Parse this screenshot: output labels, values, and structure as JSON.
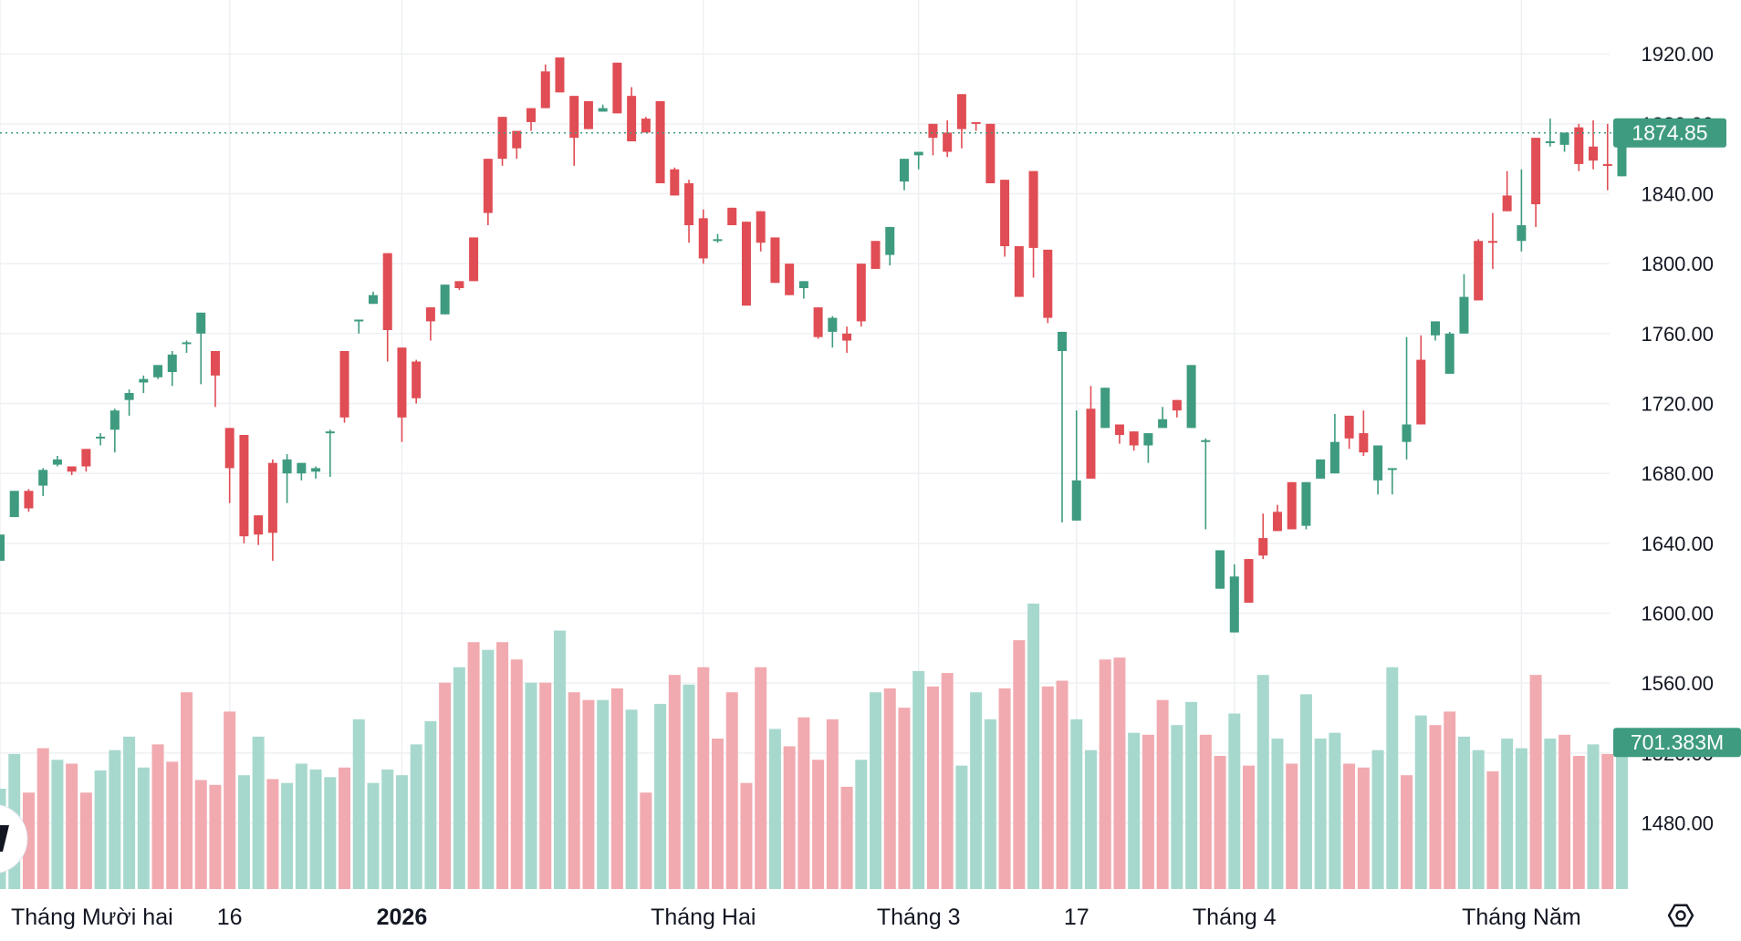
{
  "colors": {
    "up": "#3e9b80",
    "down": "#e04d54",
    "vol_up": "#a7d8ce",
    "vol_down": "#f1aab0",
    "grid": "#eef0f3",
    "tag": "#3e9b80",
    "price_line": "#3e9b80"
  },
  "icons": {
    "settings": "settings-hexagon-icon",
    "logo": "tradingview-logo-icon"
  },
  "chart_data": {
    "type": "candlestick",
    "y_axis": {
      "range": [
        1462,
        1930
      ],
      "ticks": [
        "1920.00",
        "1880.00",
        "1840.00",
        "1800.00",
        "1760.00",
        "1720.00",
        "1680.00",
        "1640.00",
        "1600.00",
        "1560.00",
        "1520.00",
        "1480.00"
      ],
      "tick_values": [
        1920,
        1880,
        1840,
        1800,
        1760,
        1720,
        1680,
        1640,
        1600,
        1560,
        1520,
        1480
      ]
    },
    "x_axis": {
      "labels": [
        {
          "text": "Tháng Mười hai",
          "bar": 0,
          "bold": false
        },
        {
          "text": "16",
          "bar": 16,
          "bold": false
        },
        {
          "text": "2026",
          "bar": 28,
          "bold": true
        },
        {
          "text": "Tháng Hai",
          "bar": 49,
          "bold": false
        },
        {
          "text": "Tháng 3",
          "bar": 64,
          "bold": false
        },
        {
          "text": "17",
          "bar": 75,
          "bold": false
        },
        {
          "text": "Tháng 4",
          "bar": 86,
          "bold": false
        },
        {
          "text": "Tháng Năm",
          "bar": 106,
          "bold": false
        }
      ]
    },
    "last_price": {
      "value": 1874.85,
      "label": "1874.85"
    },
    "last_volume": {
      "label": "701.383M"
    },
    "volume_range": [
      0,
      1300
    ],
    "ohlc": [
      [
        1630,
        1645,
        1636,
        1645
      ],
      [
        1655,
        1670,
        1658,
        1668
      ],
      [
        1670,
        1660,
        1671,
        1658
      ],
      [
        1673,
        1682,
        1667,
        1683
      ],
      [
        1685,
        1688,
        1690,
        1684
      ],
      [
        1684,
        1681,
        1683,
        1679
      ],
      [
        1694,
        1684,
        1686,
        1681
      ],
      [
        1700,
        1701,
        1696,
        1703
      ],
      [
        1705,
        1716,
        1692,
        1717
      ],
      [
        1722,
        1726,
        1713,
        1728
      ],
      [
        1732,
        1734,
        1726,
        1736
      ],
      [
        1735,
        1742,
        1741,
        1734
      ],
      [
        1738,
        1748,
        1730,
        1750
      ],
      [
        1754,
        1755,
        1749,
        1756
      ],
      [
        1760,
        1772,
        1731,
        1772
      ],
      [
        1750,
        1736,
        1718,
        1750
      ],
      [
        1706,
        1683,
        1663,
        1705
      ],
      [
        1702,
        1644,
        1640,
        1702
      ],
      [
        1656,
        1645,
        1639,
        1656
      ],
      [
        1686,
        1646,
        1630,
        1688
      ],
      [
        1680,
        1688,
        1663,
        1691
      ],
      [
        1680,
        1686,
        1676,
        1680
      ],
      [
        1681,
        1683,
        1677,
        1684
      ],
      [
        1703,
        1704,
        1678,
        1705
      ],
      [
        1750,
        1712,
        1709,
        1750
      ],
      [
        1768,
        1768,
        1760,
        1768
      ],
      [
        1777,
        1782,
        1777,
        1784
      ],
      [
        1806,
        1762,
        1744,
        1806
      ],
      [
        1752,
        1712,
        1698,
        1750
      ],
      [
        1744,
        1723,
        1720,
        1745
      ],
      [
        1775,
        1767,
        1756,
        1775
      ],
      [
        1771,
        1788,
        1780,
        1776
      ],
      [
        1790,
        1786,
        1789,
        1785
      ],
      [
        1815,
        1790,
        1798,
        1815
      ],
      [
        1860,
        1829,
        1822,
        1860
      ],
      [
        1884,
        1860,
        1856,
        1884
      ],
      [
        1876,
        1866,
        1860,
        1876
      ],
      [
        1889,
        1881,
        1876,
        1888
      ],
      [
        1910,
        1889,
        1889,
        1914
      ],
      [
        1918,
        1898,
        1900,
        1916
      ],
      [
        1896,
        1872,
        1856,
        1896
      ],
      [
        1893,
        1877,
        1889,
        1881
      ],
      [
        1887,
        1889,
        1887,
        1891
      ],
      [
        1915,
        1886,
        1891,
        1912
      ],
      [
        1896,
        1870,
        1871,
        1901
      ],
      [
        1883,
        1875,
        1880,
        1884
      ],
      [
        1893,
        1846,
        1846,
        1893
      ],
      [
        1854,
        1839,
        1840,
        1855
      ],
      [
        1846,
        1822,
        1812,
        1848
      ],
      [
        1826,
        1803,
        1800,
        1831
      ],
      [
        1813,
        1814,
        1812,
        1817
      ],
      [
        1832,
        1822,
        1823,
        1830
      ],
      [
        1824,
        1776,
        1815,
        1823
      ],
      [
        1830,
        1812,
        1807,
        1830
      ],
      [
        1815,
        1789,
        1792,
        1814
      ],
      [
        1800,
        1782,
        1782,
        1797
      ],
      [
        1786,
        1790,
        1788,
        1780
      ],
      [
        1775,
        1758,
        1757,
        1771
      ],
      [
        1761,
        1769,
        1752,
        1770
      ],
      [
        1760,
        1756,
        1749,
        1764
      ],
      [
        1800,
        1767,
        1764,
        1799
      ],
      [
        1813,
        1797,
        1807,
        1813
      ],
      [
        1805,
        1821,
        1820,
        1799
      ],
      [
        1847,
        1860,
        1852,
        1842
      ],
      [
        1862,
        1864,
        1854,
        1860
      ],
      [
        1880,
        1872,
        1870,
        1862
      ],
      [
        1875,
        1864,
        1861,
        1882
      ],
      [
        1897,
        1877,
        1875,
        1866
      ],
      [
        1881,
        1880,
        1878,
        1876
      ],
      [
        1880,
        1846,
        1846,
        1877
      ],
      [
        1848,
        1810,
        1804,
        1848
      ],
      [
        1810,
        1781,
        1806,
        1781
      ],
      [
        1853,
        1809,
        1792,
        1849
      ],
      [
        1808,
        1769,
        1766,
        1808
      ],
      [
        1750,
        1761,
        1652,
        1760
      ],
      [
        1653,
        1676,
        1716,
        1667
      ],
      [
        1717,
        1677,
        1727,
        1730
      ],
      [
        1706,
        1729,
        1715,
        1714
      ],
      [
        1708,
        1702,
        1697,
        1707
      ],
      [
        1704,
        1696,
        1703,
        1693
      ],
      [
        1696,
        1703,
        1686,
        1702
      ],
      [
        1706,
        1711,
        1718,
        1709
      ],
      [
        1722,
        1716,
        1719,
        1712
      ],
      [
        1706,
        1742,
        1707,
        1718
      ],
      [
        1699,
        1699,
        1648,
        1700
      ],
      [
        1614,
        1636,
        1627,
        1631
      ],
      [
        1589,
        1621,
        1628,
        1618
      ],
      [
        1631,
        1606,
        1610,
        1616
      ],
      [
        1643,
        1633,
        1657,
        1631
      ],
      [
        1658,
        1647,
        1662,
        1650
      ],
      [
        1675,
        1648,
        1674,
        1662
      ],
      [
        1650,
        1675,
        1672,
        1648
      ],
      [
        1677,
        1688,
        1677,
        1684
      ],
      [
        1680,
        1698,
        1714,
        1705
      ],
      [
        1713,
        1700,
        1712,
        1694
      ],
      [
        1703,
        1692,
        1716,
        1690
      ],
      [
        1676,
        1696,
        1668,
        1692
      ],
      [
        1683,
        1683,
        1681,
        1668
      ],
      [
        1698,
        1708,
        1688,
        1758
      ],
      [
        1745,
        1708,
        1759,
        1754
      ],
      [
        1759,
        1767,
        1756,
        1759
      ],
      [
        1737,
        1760,
        1741,
        1761
      ],
      [
        1760,
        1781,
        1777,
        1794
      ],
      [
        1813,
        1779,
        1791,
        1814
      ],
      [
        1813,
        1812,
        1829,
        1797
      ],
      [
        1839,
        1830,
        1853,
        1840
      ],
      [
        1813,
        1822,
        1854,
        1807
      ],
      [
        1872,
        1834,
        1821,
        1852
      ],
      [
        1870,
        1870,
        1883,
        1867
      ],
      [
        1868,
        1875,
        1872,
        1864
      ],
      [
        1878,
        1857,
        1853,
        1880
      ],
      [
        1867,
        1859,
        1882,
        1854
      ],
      [
        1857,
        1856,
        1880,
        1842
      ],
      [
        1850,
        1871,
        1858,
        1872
      ]
    ],
    "volume": [
      [
        520,
        "up"
      ],
      [
        700,
        "up"
      ],
      [
        500,
        "down"
      ],
      [
        730,
        "down"
      ],
      [
        670,
        "up"
      ],
      [
        650,
        "down"
      ],
      [
        500,
        "down"
      ],
      [
        615,
        "up"
      ],
      [
        720,
        "up"
      ],
      [
        790,
        "up"
      ],
      [
        630,
        "up"
      ],
      [
        750,
        "down"
      ],
      [
        660,
        "down"
      ],
      [
        1020,
        "down"
      ],
      [
        565,
        "down"
      ],
      [
        540,
        "down"
      ],
      [
        920,
        "down"
      ],
      [
        590,
        "up"
      ],
      [
        790,
        "up"
      ],
      [
        570,
        "down"
      ],
      [
        550,
        "up"
      ],
      [
        650,
        "up"
      ],
      [
        620,
        "up"
      ],
      [
        580,
        "up"
      ],
      [
        630,
        "down"
      ],
      [
        880,
        "up"
      ],
      [
        550,
        "up"
      ],
      [
        620,
        "up"
      ],
      [
        590,
        "up"
      ],
      [
        750,
        "up"
      ],
      [
        870,
        "up"
      ],
      [
        1070,
        "down"
      ],
      [
        1150,
        "up"
      ],
      [
        1280,
        "down"
      ],
      [
        1240,
        "up"
      ],
      [
        1280,
        "down"
      ],
      [
        1190,
        "down"
      ],
      [
        1070,
        "up"
      ],
      [
        1070,
        "down"
      ],
      [
        1340,
        "up"
      ],
      [
        1020,
        "down"
      ],
      [
        980,
        "down"
      ],
      [
        980,
        "up"
      ],
      [
        1040,
        "down"
      ],
      [
        930,
        "up"
      ],
      [
        500,
        "down"
      ],
      [
        960,
        "up"
      ],
      [
        1110,
        "down"
      ],
      [
        1060,
        "up"
      ],
      [
        1150,
        "down"
      ],
      [
        780,
        "down"
      ],
      [
        1020,
        "down"
      ],
      [
        550,
        "down"
      ],
      [
        1150,
        "down"
      ],
      [
        830,
        "up"
      ],
      [
        740,
        "down"
      ],
      [
        890,
        "down"
      ],
      [
        670,
        "down"
      ],
      [
        880,
        "down"
      ],
      [
        530,
        "down"
      ],
      [
        670,
        "up"
      ],
      [
        1020,
        "up"
      ],
      [
        1040,
        "down"
      ],
      [
        940,
        "down"
      ],
      [
        1130,
        "up"
      ],
      [
        1050,
        "down"
      ],
      [
        1120,
        "down"
      ],
      [
        640,
        "up"
      ],
      [
        1020,
        "up"
      ],
      [
        880,
        "up"
      ],
      [
        1040,
        "down"
      ],
      [
        1290,
        "down"
      ],
      [
        1480,
        "up"
      ],
      [
        1050,
        "down"
      ],
      [
        1080,
        "down"
      ],
      [
        880,
        "up"
      ],
      [
        720,
        "up"
      ],
      [
        1190,
        "down"
      ],
      [
        1200,
        "down"
      ],
      [
        810,
        "up"
      ],
      [
        800,
        "down"
      ],
      [
        980,
        "down"
      ],
      [
        850,
        "up"
      ],
      [
        970,
        "up"
      ],
      [
        800,
        "down"
      ],
      [
        690,
        "down"
      ],
      [
        910,
        "up"
      ],
      [
        640,
        "down"
      ],
      [
        1110,
        "up"
      ],
      [
        780,
        "up"
      ],
      [
        650,
        "down"
      ],
      [
        1010,
        "up"
      ],
      [
        780,
        "up"
      ],
      [
        810,
        "up"
      ],
      [
        650,
        "down"
      ],
      [
        630,
        "down"
      ],
      [
        720,
        "up"
      ],
      [
        1150,
        "up"
      ],
      [
        590,
        "down"
      ],
      [
        900,
        "up"
      ],
      [
        850,
        "down"
      ],
      [
        920,
        "down"
      ],
      [
        790,
        "up"
      ],
      [
        720,
        "up"
      ],
      [
        610,
        "down"
      ],
      [
        780,
        "up"
      ],
      [
        730,
        "up"
      ],
      [
        1110,
        "down"
      ],
      [
        780,
        "up"
      ],
      [
        800,
        "down"
      ],
      [
        690,
        "down"
      ],
      [
        750,
        "up"
      ],
      [
        700,
        "down"
      ],
      [
        760,
        "up"
      ]
    ]
  }
}
